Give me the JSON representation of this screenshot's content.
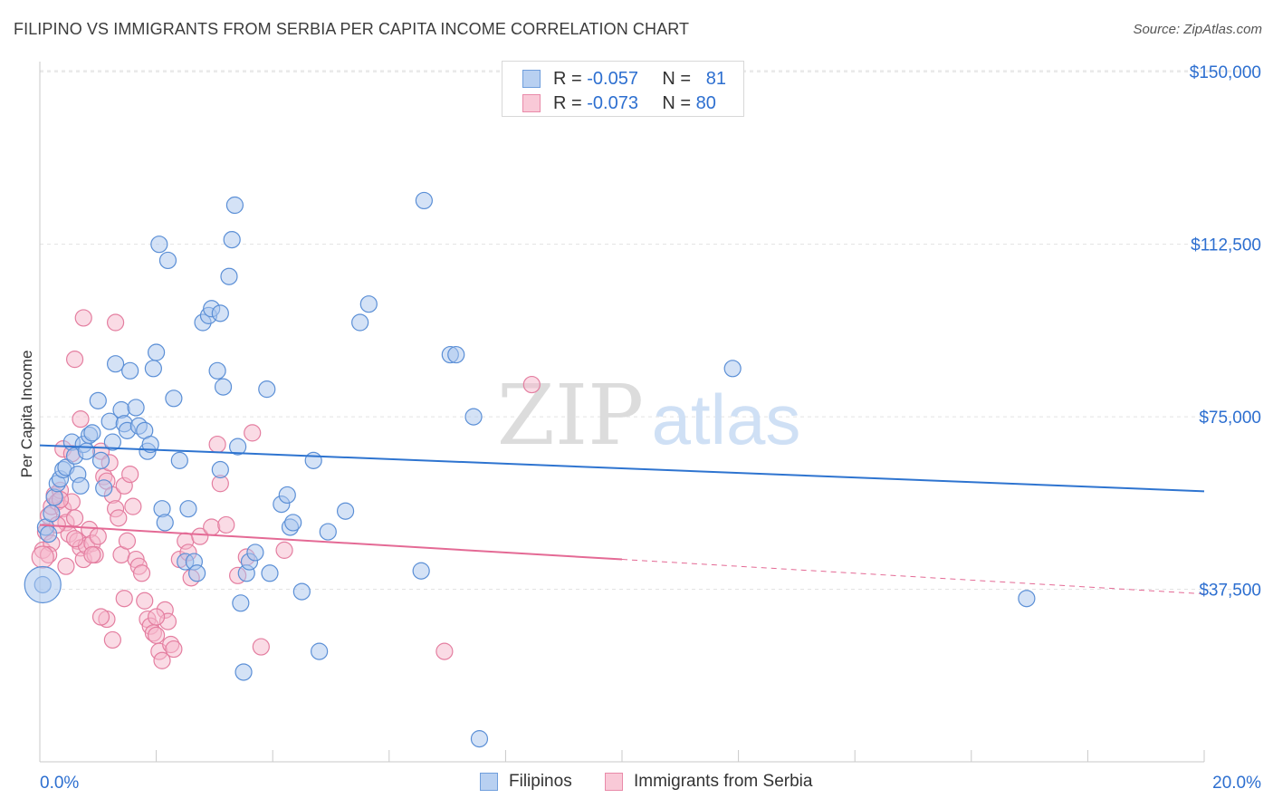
{
  "title": "FILIPINO VS IMMIGRANTS FROM SERBIA PER CAPITA INCOME CORRELATION CHART",
  "source": "Source: ZipAtlas.com",
  "watermark": {
    "zip": "ZIP",
    "atlas": "atlas"
  },
  "legend": {
    "series1": {
      "r_label": "R =",
      "r_value": "-0.057",
      "n_label": "N =",
      "n_value": "81"
    },
    "series2": {
      "r_label": "R =",
      "r_value": "-0.073",
      "n_label": "N =",
      "n_value": "80"
    }
  },
  "colors": {
    "blue_fill": "#a9c6ee",
    "blue_stroke": "#5b8fd6",
    "blue_line": "#2e74d0",
    "pink_fill": "#f6b8cb",
    "pink_stroke": "#e47ea0",
    "pink_line": "#e46a95",
    "axis_text_blue": "#2d6fd0",
    "grid": "#e3e3e3"
  },
  "chart_data": {
    "type": "scatter",
    "title": "FILIPINO VS IMMIGRANTS FROM SERBIA PER CAPITA INCOME CORRELATION CHART",
    "xlabel": "",
    "ylabel": "Per Capita Income",
    "xlim": [
      0,
      20
    ],
    "ylim": [
      0,
      155000
    ],
    "x_tick_labels": [
      "0.0%",
      "20.0%"
    ],
    "y_ticks": [
      37500,
      75000,
      112500,
      150000
    ],
    "y_tick_labels": [
      "$37,500",
      "$75,000",
      "$112,500",
      "$150,000"
    ],
    "grid": true,
    "legend_position": "top-center",
    "series": [
      {
        "name": "Filipinos",
        "r": -0.057,
        "n": 81,
        "trend": {
          "x": [
            0,
            20
          ],
          "y": [
            68800,
            58800
          ]
        },
        "points": [
          [
            0.1,
            51000
          ],
          [
            0.15,
            49500
          ],
          [
            0.2,
            54000
          ],
          [
            0.25,
            57500
          ],
          [
            0.3,
            60500
          ],
          [
            0.35,
            61500
          ],
          [
            0.4,
            63500
          ],
          [
            0.45,
            64000
          ],
          [
            0.55,
            69500
          ],
          [
            0.6,
            66500
          ],
          [
            0.65,
            62500
          ],
          [
            0.7,
            60000
          ],
          [
            0.75,
            69000
          ],
          [
            0.8,
            67500
          ],
          [
            0.85,
            71000
          ],
          [
            0.9,
            71500
          ],
          [
            1.0,
            78500
          ],
          [
            1.05,
            65500
          ],
          [
            1.1,
            59500
          ],
          [
            1.2,
            74000
          ],
          [
            1.25,
            69500
          ],
          [
            1.3,
            86500
          ],
          [
            1.4,
            76500
          ],
          [
            1.45,
            73500
          ],
          [
            1.5,
            72000
          ],
          [
            1.55,
            85000
          ],
          [
            1.65,
            77000
          ],
          [
            1.7,
            73000
          ],
          [
            1.8,
            72000
          ],
          [
            1.85,
            67500
          ],
          [
            1.9,
            69000
          ],
          [
            1.95,
            85500
          ],
          [
            2.0,
            89000
          ],
          [
            2.05,
            112500
          ],
          [
            2.1,
            55000
          ],
          [
            2.15,
            52000
          ],
          [
            2.2,
            109000
          ],
          [
            2.3,
            79000
          ],
          [
            2.4,
            65500
          ],
          [
            2.5,
            43500
          ],
          [
            2.55,
            55000
          ],
          [
            2.65,
            43500
          ],
          [
            2.7,
            41000
          ],
          [
            2.8,
            95500
          ],
          [
            2.9,
            97000
          ],
          [
            2.95,
            98500
          ],
          [
            3.05,
            85000
          ],
          [
            3.1,
            97500
          ],
          [
            3.15,
            81500
          ],
          [
            3.1,
            63500
          ],
          [
            3.25,
            105500
          ],
          [
            3.3,
            113500
          ],
          [
            3.35,
            121000
          ],
          [
            3.4,
            68500
          ],
          [
            3.45,
            34500
          ],
          [
            3.5,
            19500
          ],
          [
            3.55,
            41000
          ],
          [
            3.6,
            43500
          ],
          [
            3.7,
            45500
          ],
          [
            3.9,
            81000
          ],
          [
            3.95,
            41000
          ],
          [
            4.15,
            56000
          ],
          [
            4.25,
            58000
          ],
          [
            4.3,
            51000
          ],
          [
            4.35,
            52000
          ],
          [
            4.5,
            37000
          ],
          [
            4.7,
            65500
          ],
          [
            4.8,
            24000
          ],
          [
            4.95,
            50000
          ],
          [
            5.25,
            54500
          ],
          [
            5.5,
            95500
          ],
          [
            5.65,
            99500
          ],
          [
            6.55,
            41500
          ],
          [
            6.6,
            122000
          ],
          [
            7.05,
            88500
          ],
          [
            7.15,
            88500
          ],
          [
            7.45,
            75000
          ],
          [
            7.55,
            5000
          ],
          [
            11.9,
            85500
          ],
          [
            16.95,
            35500
          ],
          [
            0.05,
            38500
          ]
        ]
      },
      {
        "name": "Immigrants from Serbia",
        "r": -0.073,
        "n": 80,
        "trend": {
          "x": [
            0,
            10
          ],
          "y": [
            51500,
            44000
          ]
        },
        "trend_dashed": {
          "x": [
            10,
            20
          ],
          "y": [
            44000,
            36500
          ]
        },
        "points": [
          [
            0.05,
            46000
          ],
          [
            0.1,
            50000
          ],
          [
            0.15,
            53500
          ],
          [
            0.2,
            55500
          ],
          [
            0.25,
            58000
          ],
          [
            0.3,
            56500
          ],
          [
            0.35,
            59000
          ],
          [
            0.4,
            55000
          ],
          [
            0.45,
            52000
          ],
          [
            0.5,
            49500
          ],
          [
            0.55,
            56500
          ],
          [
            0.6,
            53000
          ],
          [
            0.65,
            48000
          ],
          [
            0.7,
            46500
          ],
          [
            0.75,
            44000
          ],
          [
            0.8,
            47000
          ],
          [
            0.85,
            50500
          ],
          [
            0.9,
            47500
          ],
          [
            0.95,
            45000
          ],
          [
            1.0,
            49000
          ],
          [
            1.05,
            67500
          ],
          [
            1.1,
            62000
          ],
          [
            1.15,
            61000
          ],
          [
            1.2,
            65000
          ],
          [
            1.25,
            58000
          ],
          [
            1.3,
            55000
          ],
          [
            1.35,
            53000
          ],
          [
            1.4,
            45000
          ],
          [
            1.45,
            60000
          ],
          [
            1.5,
            48000
          ],
          [
            1.55,
            62500
          ],
          [
            1.6,
            55500
          ],
          [
            1.65,
            44000
          ],
          [
            1.7,
            42500
          ],
          [
            1.75,
            41000
          ],
          [
            1.8,
            35000
          ],
          [
            1.85,
            31000
          ],
          [
            1.9,
            29500
          ],
          [
            1.95,
            28000
          ],
          [
            2.0,
            27500
          ],
          [
            2.05,
            24000
          ],
          [
            2.1,
            22000
          ],
          [
            2.15,
            33000
          ],
          [
            2.2,
            30500
          ],
          [
            2.25,
            25500
          ],
          [
            2.3,
            24500
          ],
          [
            2.4,
            44000
          ],
          [
            2.5,
            48000
          ],
          [
            2.55,
            45500
          ],
          [
            2.6,
            40000
          ],
          [
            2.75,
            49000
          ],
          [
            2.95,
            51000
          ],
          [
            3.05,
            69000
          ],
          [
            3.1,
            60500
          ],
          [
            3.2,
            51500
          ],
          [
            3.4,
            40500
          ],
          [
            3.55,
            44500
          ],
          [
            3.65,
            71500
          ],
          [
            3.8,
            25000
          ],
          [
            4.2,
            46000
          ],
          [
            0.75,
            96500
          ],
          [
            1.3,
            95500
          ],
          [
            0.6,
            87500
          ],
          [
            0.7,
            74500
          ],
          [
            0.4,
            68000
          ],
          [
            0.55,
            67000
          ],
          [
            0.35,
            57000
          ],
          [
            0.3,
            51500
          ],
          [
            0.2,
            47500
          ],
          [
            0.15,
            45000
          ],
          [
            1.15,
            31000
          ],
          [
            1.05,
            31500
          ],
          [
            1.25,
            26500
          ],
          [
            1.45,
            35500
          ],
          [
            2.0,
            31500
          ],
          [
            8.45,
            82000
          ],
          [
            6.95,
            24000
          ],
          [
            0.45,
            42500
          ],
          [
            0.6,
            48500
          ],
          [
            0.9,
            45000
          ]
        ]
      }
    ]
  },
  "axis": {
    "x_left": "0.0%",
    "x_right": "20.0%",
    "y_title": "Per Capita Income",
    "y_labels": [
      "$150,000",
      "$112,500",
      "$75,000",
      "$37,500"
    ]
  },
  "legend_bottom": {
    "item1": "Filipinos",
    "item2": "Immigrants from Serbia"
  }
}
